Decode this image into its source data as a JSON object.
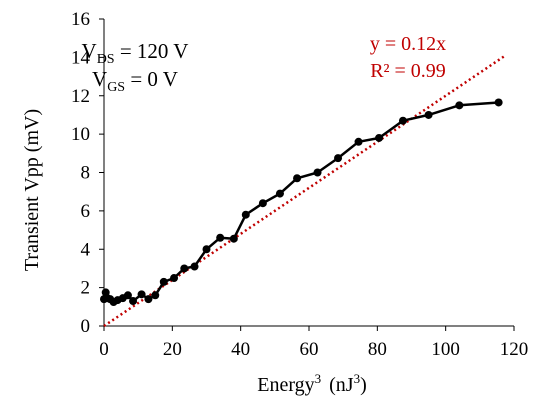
{
  "chart_data": {
    "type": "line",
    "xlabel": {
      "base": "Energy",
      "sup": "3",
      "unit_pre": "(nJ",
      "unit_sup": "3",
      "unit_post": ")"
    },
    "ylabel": "Transient Vpp  (mV)",
    "xlim": [
      0,
      120
    ],
    "ylim": [
      0,
      16
    ],
    "xticks": [
      "0",
      "20",
      "40",
      "60",
      "80",
      "100",
      "120"
    ],
    "yticks": [
      "0",
      "2",
      "4",
      "6",
      "8",
      "10",
      "12",
      "14",
      "16"
    ],
    "grid": false,
    "series": [
      {
        "x": [
          0.0,
          0.5,
          1.0,
          1.8,
          2.8,
          4.0,
          5.5,
          7.0,
          8.5,
          11.0,
          13.0,
          15.0,
          17.5,
          20.5,
          23.5,
          26.5,
          30.0,
          34.0,
          38.0,
          41.5,
          46.5,
          51.5,
          56.5,
          62.5,
          68.5,
          74.5,
          80.5,
          87.5,
          95.0,
          104.0,
          115.5
        ],
        "y": [
          1.4,
          1.75,
          1.45,
          1.4,
          1.25,
          1.35,
          1.45,
          1.6,
          1.3,
          1.65,
          1.4,
          1.6,
          2.3,
          2.5,
          3.0,
          3.1,
          4.0,
          4.6,
          4.55,
          5.8,
          6.4,
          6.9,
          7.7,
          8.0,
          8.75,
          9.6,
          9.8,
          10.7,
          11.0,
          11.5,
          11.65
        ]
      }
    ],
    "trendline": {
      "equation": "y = 0.12x",
      "r2": "R² = 0.99",
      "slope": 0.12,
      "x_range": [
        0,
        117.5
      ]
    },
    "annotations": {
      "vds": {
        "main": "V",
        "sub": "DS",
        "rest": " = 120 V"
      },
      "vgs": {
        "main": "V",
        "sub": "GS",
        "rest": " = 0 V"
      }
    },
    "colors": {
      "series": "#000000",
      "trendline": "#c00000",
      "axis": "#000000"
    }
  }
}
